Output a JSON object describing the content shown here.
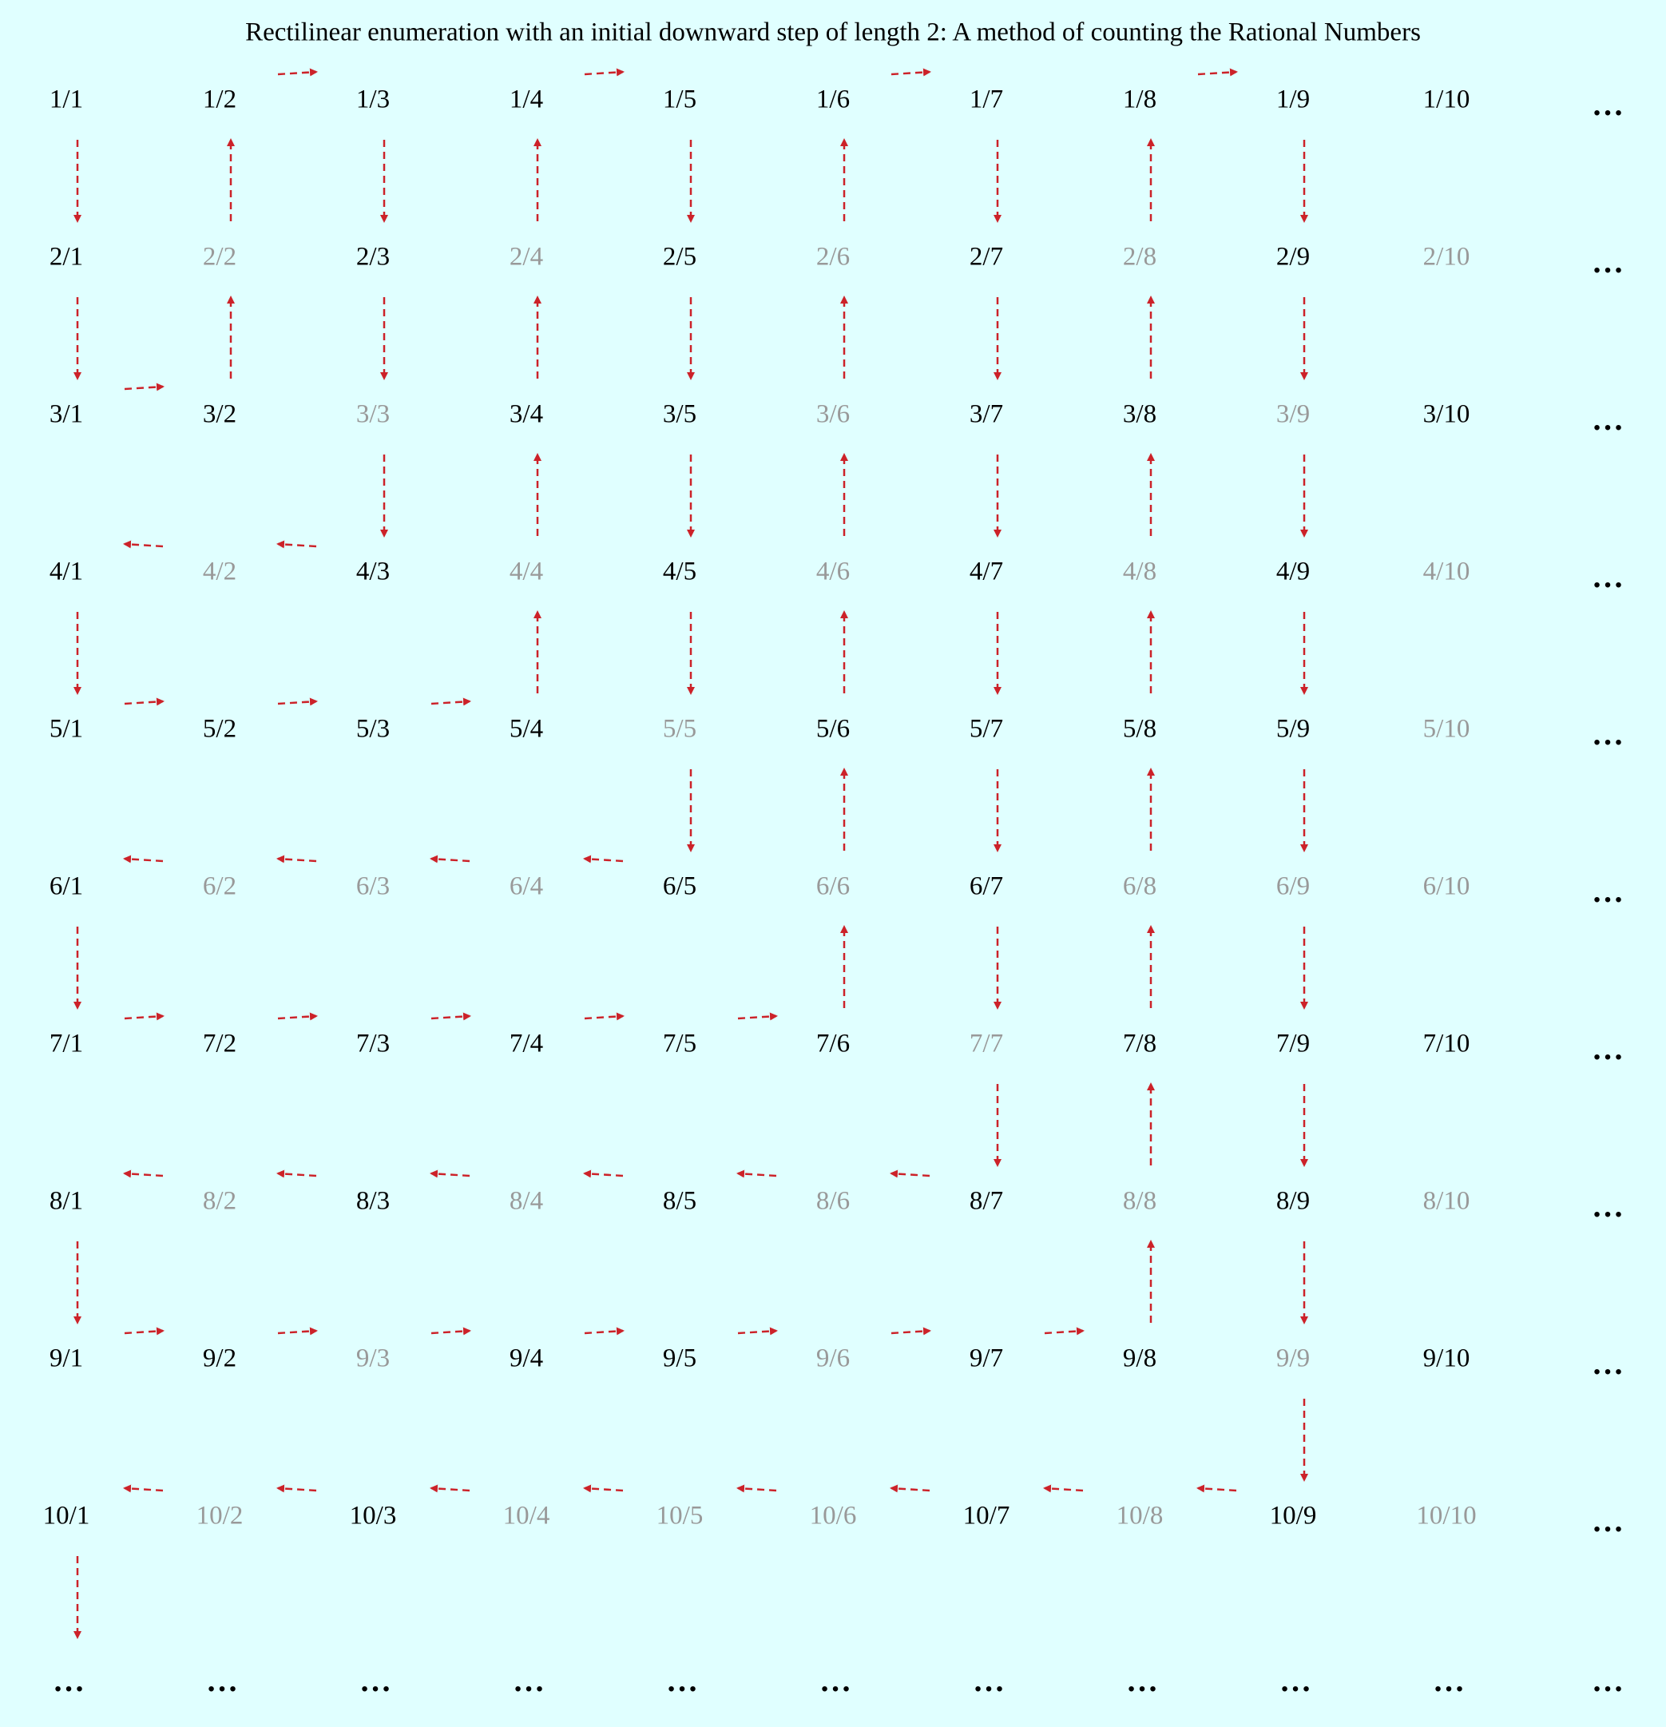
{
  "title": "Rectilinear enumeration with an initial downward step of length 2: A method of counting the Rational Numbers",
  "more": "…",
  "rows": [
    [
      {
        "label": "1/1",
        "color": "#000000"
      },
      {
        "label": "1/2",
        "color": "#000000"
      },
      {
        "label": "1/3",
        "color": "#000000"
      },
      {
        "label": "1/4",
        "color": "#000000"
      },
      {
        "label": "1/5",
        "color": "#000000"
      },
      {
        "label": "1/6",
        "color": "#000000"
      },
      {
        "label": "1/7",
        "color": "#000000"
      },
      {
        "label": "1/8",
        "color": "#000000"
      },
      {
        "label": "1/9",
        "color": "#000000"
      },
      {
        "label": "1/10",
        "color": "#000000"
      }
    ],
    [
      {
        "label": "2/1",
        "color": "#000000"
      },
      {
        "label": "2/2",
        "color": "#999999"
      },
      {
        "label": "2/3",
        "color": "#000000"
      },
      {
        "label": "2/4",
        "color": "#999999"
      },
      {
        "label": "2/5",
        "color": "#000000"
      },
      {
        "label": "2/6",
        "color": "#999999"
      },
      {
        "label": "2/7",
        "color": "#000000"
      },
      {
        "label": "2/8",
        "color": "#999999"
      },
      {
        "label": "2/9",
        "color": "#000000"
      },
      {
        "label": "2/10",
        "color": "#999999"
      }
    ],
    [
      {
        "label": "3/1",
        "color": "#000000"
      },
      {
        "label": "3/2",
        "color": "#000000"
      },
      {
        "label": "3/3",
        "color": "#999999"
      },
      {
        "label": "3/4",
        "color": "#000000"
      },
      {
        "label": "3/5",
        "color": "#000000"
      },
      {
        "label": "3/6",
        "color": "#999999"
      },
      {
        "label": "3/7",
        "color": "#000000"
      },
      {
        "label": "3/8",
        "color": "#000000"
      },
      {
        "label": "3/9",
        "color": "#999999"
      },
      {
        "label": "3/10",
        "color": "#000000"
      }
    ],
    [
      {
        "label": "4/1",
        "color": "#000000"
      },
      {
        "label": "4/2",
        "color": "#999999"
      },
      {
        "label": "4/3",
        "color": "#000000"
      },
      {
        "label": "4/4",
        "color": "#999999"
      },
      {
        "label": "4/5",
        "color": "#000000"
      },
      {
        "label": "4/6",
        "color": "#999999"
      },
      {
        "label": "4/7",
        "color": "#000000"
      },
      {
        "label": "4/8",
        "color": "#999999"
      },
      {
        "label": "4/9",
        "color": "#000000"
      },
      {
        "label": "4/10",
        "color": "#999999"
      }
    ],
    [
      {
        "label": "5/1",
        "color": "#000000"
      },
      {
        "label": "5/2",
        "color": "#000000"
      },
      {
        "label": "5/3",
        "color": "#000000"
      },
      {
        "label": "5/4",
        "color": "#000000"
      },
      {
        "label": "5/5",
        "color": "#999999"
      },
      {
        "label": "5/6",
        "color": "#000000"
      },
      {
        "label": "5/7",
        "color": "#000000"
      },
      {
        "label": "5/8",
        "color": "#000000"
      },
      {
        "label": "5/9",
        "color": "#000000"
      },
      {
        "label": "5/10",
        "color": "#999999"
      }
    ],
    [
      {
        "label": "6/1",
        "color": "#000000"
      },
      {
        "label": "6/2",
        "color": "#999999"
      },
      {
        "label": "6/3",
        "color": "#999999"
      },
      {
        "label": "6/4",
        "color": "#999999"
      },
      {
        "label": "6/5",
        "color": "#000000"
      },
      {
        "label": "6/6",
        "color": "#999999"
      },
      {
        "label": "6/7",
        "color": "#000000"
      },
      {
        "label": "6/8",
        "color": "#999999"
      },
      {
        "label": "6/9",
        "color": "#999999"
      },
      {
        "label": "6/10",
        "color": "#999999"
      }
    ],
    [
      {
        "label": "7/1",
        "color": "#000000"
      },
      {
        "label": "7/2",
        "color": "#000000"
      },
      {
        "label": "7/3",
        "color": "#000000"
      },
      {
        "label": "7/4",
        "color": "#000000"
      },
      {
        "label": "7/5",
        "color": "#000000"
      },
      {
        "label": "7/6",
        "color": "#000000"
      },
      {
        "label": "7/7",
        "color": "#999999"
      },
      {
        "label": "7/8",
        "color": "#000000"
      },
      {
        "label": "7/9",
        "color": "#000000"
      },
      {
        "label": "7/10",
        "color": "#000000"
      }
    ],
    [
      {
        "label": "8/1",
        "color": "#000000"
      },
      {
        "label": "8/2",
        "color": "#999999"
      },
      {
        "label": "8/3",
        "color": "#000000"
      },
      {
        "label": "8/4",
        "color": "#999999"
      },
      {
        "label": "8/5",
        "color": "#000000"
      },
      {
        "label": "8/6",
        "color": "#999999"
      },
      {
        "label": "8/7",
        "color": "#000000"
      },
      {
        "label": "8/8",
        "color": "#999999"
      },
      {
        "label": "8/9",
        "color": "#000000"
      },
      {
        "label": "8/10",
        "color": "#999999"
      }
    ],
    [
      {
        "label": "9/1",
        "color": "#000000"
      },
      {
        "label": "9/2",
        "color": "#000000"
      },
      {
        "label": "9/3",
        "color": "#999999"
      },
      {
        "label": "9/4",
        "color": "#000000"
      },
      {
        "label": "9/5",
        "color": "#000000"
      },
      {
        "label": "9/6",
        "color": "#999999"
      },
      {
        "label": "9/7",
        "color": "#000000"
      },
      {
        "label": "9/8",
        "color": "#000000"
      },
      {
        "label": "9/9",
        "color": "#999999"
      },
      {
        "label": "9/10",
        "color": "#000000"
      }
    ],
    [
      {
        "label": "10/1",
        "color": "#000000"
      },
      {
        "label": "10/2",
        "color": "#999999"
      },
      {
        "label": "10/3",
        "color": "#000000"
      },
      {
        "label": "10/4",
        "color": "#999999"
      },
      {
        "label": "10/5",
        "color": "#999999"
      },
      {
        "label": "10/6",
        "color": "#999999"
      },
      {
        "label": "10/7",
        "color": "#000000"
      },
      {
        "label": "10/8",
        "color": "#999999"
      },
      {
        "label": "10/9",
        "color": "#000000"
      },
      {
        "label": "10/10",
        "color": "#999999"
      }
    ]
  ]
}
